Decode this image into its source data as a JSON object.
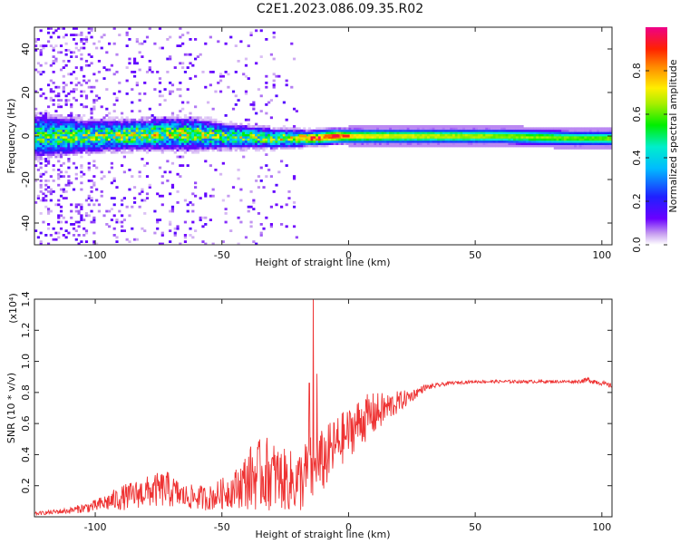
{
  "title": "C2E1.2023.086.09.35.R02",
  "chart_data": [
    {
      "type": "heatmap",
      "xlabel": "Height of straight line (km)",
      "ylabel": "Frequency (Hz)",
      "xlim": [
        -124,
        104
      ],
      "ylim": [
        -50,
        50
      ],
      "xticks": [
        -100,
        -50,
        0,
        50,
        100
      ],
      "yticks": [
        -40,
        -20,
        0,
        20,
        40
      ],
      "colorbar": {
        "label": "Normalized spectral amplitude",
        "range": [
          0.0,
          1.0
        ],
        "ticks": [
          "0.0",
          "0.2",
          "0.4",
          "0.6",
          "0.8"
        ],
        "colormap": "rainbow (white-violet-blue-cyan-green-yellow-orange-red-magenta)"
      },
      "ridge": [
        {
          "x": -120,
          "center": 0,
          "halfwidth": 8,
          "peak": 0.5
        },
        {
          "x": -100,
          "center": 0,
          "halfwidth": 6,
          "peak": 0.55
        },
        {
          "x": -75,
          "center": 1,
          "halfwidth": 6,
          "peak": 0.6
        },
        {
          "x": -60,
          "center": 1,
          "halfwidth": 6,
          "peak": 0.6
        },
        {
          "x": -50,
          "center": 0,
          "halfwidth": 5,
          "peak": 0.55
        },
        {
          "x": -30,
          "center": -1,
          "halfwidth": 4,
          "peak": 0.55
        },
        {
          "x": -15,
          "center": -1,
          "halfwidth": 3,
          "peak": 0.8
        },
        {
          "x": -5,
          "center": 0,
          "halfwidth": 3,
          "peak": 0.9
        },
        {
          "x": 0,
          "center": 0,
          "halfwidth": 3,
          "peak": 0.75
        },
        {
          "x": 20,
          "center": 0,
          "halfwidth": 3,
          "peak": 0.7
        },
        {
          "x": 60,
          "center": 0,
          "halfwidth": 3,
          "peak": 0.65
        },
        {
          "x": 90,
          "center": -1,
          "halfwidth": 3,
          "peak": 0.62
        },
        {
          "x": 104,
          "center": -1,
          "halfwidth": 3,
          "peak": 0.62
        }
      ]
    },
    {
      "type": "line",
      "xlabel": "Height of straight line (km)",
      "ylabel": "SNR (10 * v/v)",
      "ylabel_multiplier": "(x10⁴)",
      "xlim": [
        -124,
        104
      ],
      "ylim": [
        0,
        1.4
      ],
      "xticks": [
        -100,
        -50,
        0,
        50,
        100
      ],
      "yticks": [
        "0.2",
        "0.4",
        "0.6",
        "0.8",
        "1.0",
        "1.2",
        "1.4"
      ],
      "series": [
        {
          "color": "#ee3333",
          "x": [
            -124,
            -110,
            -100,
            -90,
            -80,
            -72,
            -65,
            -55,
            -45,
            -38,
            -32,
            -26,
            -20,
            -16,
            -12,
            -8,
            -4,
            0,
            5,
            10,
            15,
            20,
            25,
            30,
            40,
            50,
            60,
            70,
            80,
            90,
            95,
            100,
            104
          ],
          "y": [
            0.02,
            0.04,
            0.07,
            0.12,
            0.16,
            0.18,
            0.13,
            0.12,
            0.18,
            0.26,
            0.28,
            0.24,
            0.22,
            0.28,
            0.32,
            0.4,
            0.48,
            0.54,
            0.62,
            0.66,
            0.7,
            0.74,
            0.78,
            0.83,
            0.86,
            0.87,
            0.87,
            0.87,
            0.87,
            0.87,
            0.88,
            0.86,
            0.84
          ],
          "noise": [
            0.01,
            0.02,
            0.04,
            0.08,
            0.1,
            0.12,
            0.08,
            0.08,
            0.12,
            0.22,
            0.24,
            0.2,
            0.2,
            0.24,
            0.22,
            0.2,
            0.18,
            0.16,
            0.16,
            0.14,
            0.1,
            0.07,
            0.04,
            0.02,
            0.01,
            0.01,
            0.01,
            0.01,
            0.01,
            0.01,
            0.02,
            0.015,
            0.015
          ],
          "spikes": [
            {
              "x": -14,
              "y": 1.45
            },
            {
              "x": -15.5,
              "y": 0.86
            },
            {
              "x": -12.5,
              "y": 0.92
            }
          ]
        }
      ]
    }
  ]
}
